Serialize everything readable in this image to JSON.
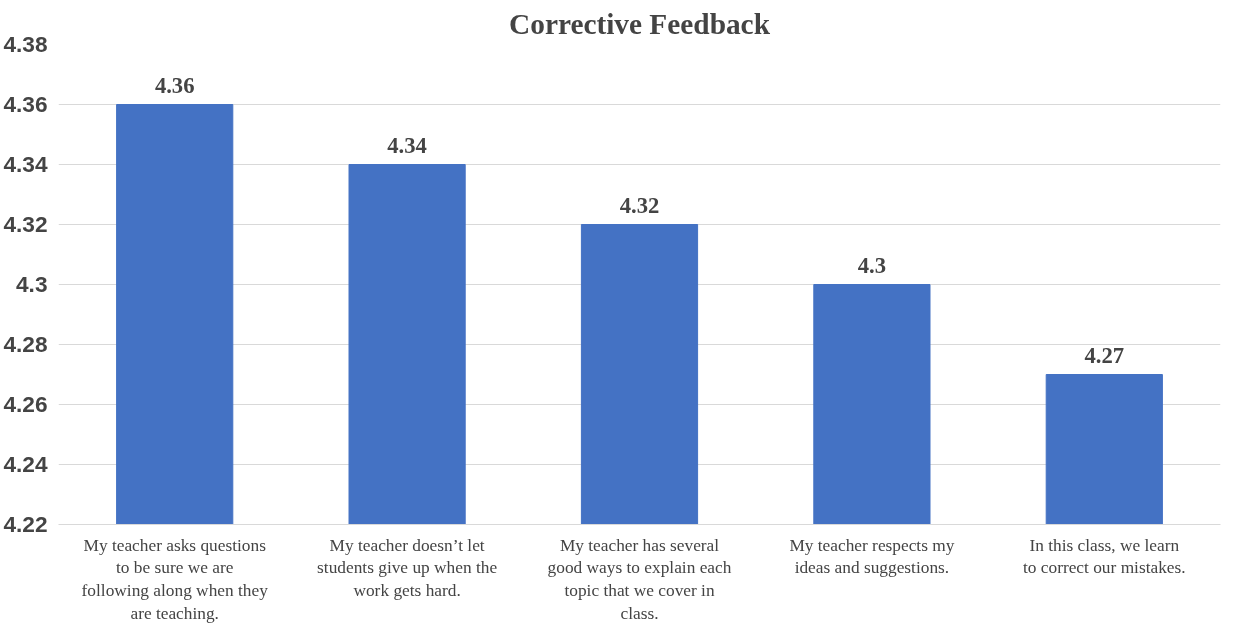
{
  "chart_data": {
    "type": "bar",
    "title": "Corrective Feedback",
    "categories": [
      "My teacher asks questions to be sure we are following along when they are teaching.",
      "My teacher doesn’t let students give up when the work gets hard.",
      "My teacher has several good ways to explain each topic that we cover in class.",
      "My teacher respects my ideas and suggestions.",
      "In this class, we learn to correct our mistakes."
    ],
    "values": [
      4.36,
      4.34,
      4.32,
      4.3,
      4.27
    ],
    "color": "#4472c4",
    "ylim": [
      4.22,
      4.38
    ],
    "yticks": [
      4.22,
      4.24,
      4.26,
      4.28,
      4.3,
      4.32,
      4.34,
      4.36,
      4.38
    ],
    "grid": "y",
    "data_labels": true
  }
}
